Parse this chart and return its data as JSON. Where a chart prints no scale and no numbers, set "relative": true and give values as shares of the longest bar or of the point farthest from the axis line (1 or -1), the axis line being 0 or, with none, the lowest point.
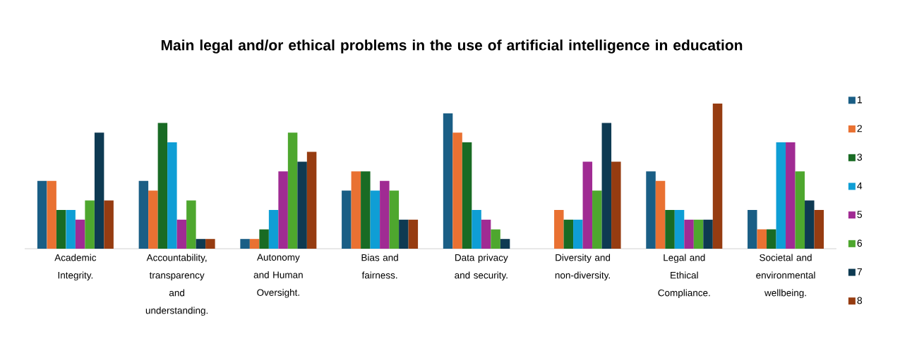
{
  "chart_data": {
    "type": "bar",
    "title": "Main legal and/or ethical problems in the use of artificial intelligence in education",
    "categories": [
      "Academic Integrity.",
      "Accountability, transparency and understanding.",
      "Autonomy and Human Oversight.",
      "Bias and fairness.",
      "Data privacy and security.",
      "Diversity and non-diversity.",
      "Legal and Ethical Compliance.",
      "Societal and environmental wellbeing."
    ],
    "relative": true,
    "legend": "right",
    "series": [
      {
        "name": "1",
        "color": "#1a5e85",
        "values": [
          0.467,
          0.467,
          0.067,
          0.4,
          0.933,
          0,
          0.533,
          0.267
        ]
      },
      {
        "name": "2",
        "color": "#e97132",
        "values": [
          0.467,
          0.4,
          0.067,
          0.533,
          0.8,
          0.267,
          0.467,
          0.133
        ]
      },
      {
        "name": "3",
        "color": "#196b24",
        "values": [
          0.267,
          0.867,
          0.133,
          0.533,
          0.733,
          0.2,
          0.267,
          0.133
        ]
      },
      {
        "name": "4",
        "color": "#0f9ed5",
        "values": [
          0.267,
          0.733,
          0.267,
          0.4,
          0.267,
          0.2,
          0.267,
          0.733
        ]
      },
      {
        "name": "5",
        "color": "#a02b93",
        "values": [
          0.2,
          0.2,
          0.533,
          0.467,
          0.2,
          0.6,
          0.2,
          0.733
        ]
      },
      {
        "name": "6",
        "color": "#4ea72e",
        "values": [
          0.333,
          0.333,
          0.8,
          0.4,
          0.133,
          0.4,
          0.2,
          0.533
        ]
      },
      {
        "name": "7",
        "color": "#0e3a52",
        "values": [
          0.8,
          0.067,
          0.6,
          0.2,
          0.067,
          0.867,
          0.2,
          0.333
        ]
      },
      {
        "name": "8",
        "color": "#963c11",
        "values": [
          0.333,
          0.067,
          0.667,
          0.2,
          0,
          0.6,
          1,
          0.267
        ]
      }
    ]
  }
}
